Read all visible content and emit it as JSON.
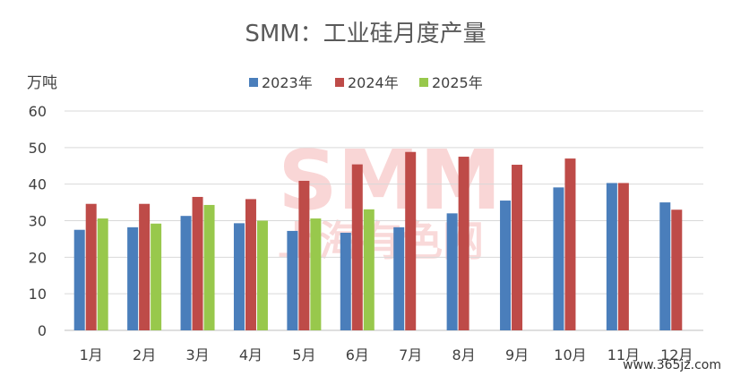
{
  "chart_data": {
    "type": "bar",
    "title": "SMM：工业硅月度产量",
    "ylabel": "万吨",
    "ylim": [
      0,
      60
    ],
    "yticks": [
      0,
      10,
      20,
      30,
      40,
      50,
      60
    ],
    "grid": true,
    "legend_position": "top",
    "categories": [
      "1月",
      "2月",
      "3月",
      "4月",
      "5月",
      "6月",
      "7月",
      "8月",
      "9月",
      "10月",
      "11月",
      "12月"
    ],
    "series": [
      {
        "name": "2023年",
        "color": "#4a7ebb",
        "values": [
          27.5,
          28.2,
          31.3,
          29.3,
          27.2,
          26.7,
          28.2,
          32.0,
          35.5,
          39.1,
          40.3,
          35.0
        ]
      },
      {
        "name": "2024年",
        "color": "#be4b48",
        "values": [
          34.6,
          34.6,
          36.5,
          35.9,
          40.9,
          45.4,
          48.8,
          47.5,
          45.3,
          47.0,
          40.3,
          33.0
        ]
      },
      {
        "name": "2025年",
        "color": "#98c84c",
        "values": [
          30.6,
          29.2,
          34.3,
          30.0,
          30.6,
          33.1,
          null,
          null,
          null,
          null,
          null,
          null
        ]
      }
    ]
  },
  "watermark": {
    "logo": "SMM",
    "text": "上海有色网"
  },
  "site_label": "www.365jz.com"
}
